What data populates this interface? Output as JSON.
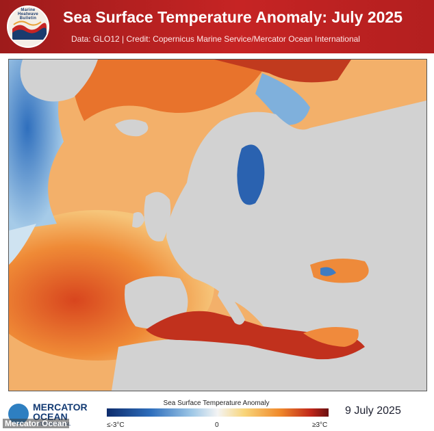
{
  "header": {
    "title": "Sea Surface Temperature Anomaly: July 2025",
    "subtitle": "Data: GLO12 | Credit: Copernicus Marine Service/Mercator Ocean International",
    "logo_text": "Marine Heatwave Bulletin",
    "colors": {
      "background": "#b52121",
      "title": "#ffffff"
    }
  },
  "map": {
    "region": "North Atlantic, Europe, Mediterranean",
    "land_color": "#d2d2d2"
  },
  "legend": {
    "title": "Sea Surface Temperature Anomaly",
    "min_label": "≤-3°C",
    "mid_label": "0",
    "max_label": "≥3°C",
    "colors": [
      "#0d2c6c",
      "#2f6fbd",
      "#9cc6e6",
      "#f4f4f4",
      "#f8d57a",
      "#f08a2c",
      "#c0271a",
      "#6a1010"
    ]
  },
  "footer": {
    "logo_line1": "MERCATOR",
    "logo_line2": "OCEAN",
    "logo_line3": "INTERNATIONAL",
    "date": "9 July 2025",
    "watermark": "Mercator Ocean"
  }
}
